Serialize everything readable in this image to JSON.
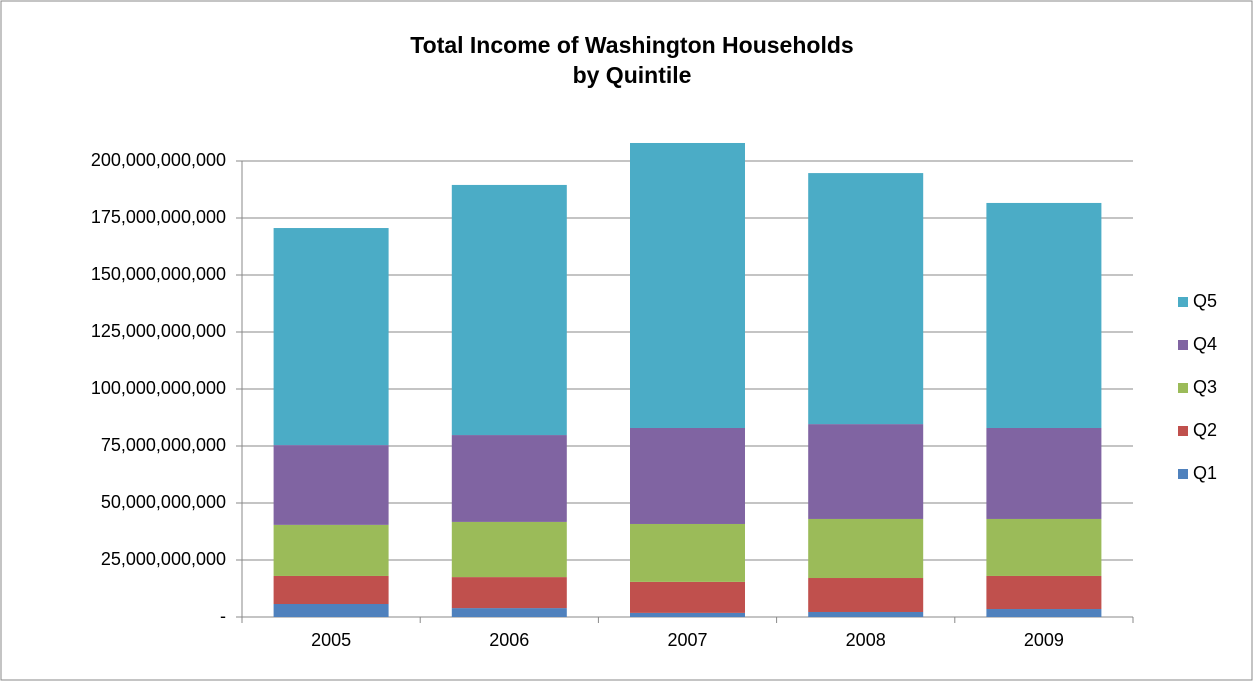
{
  "chart_data": {
    "type": "stacked_bar",
    "title": [
      "Total Income of Washington Households",
      "by Quintile"
    ],
    "categories": [
      "2005",
      "2006",
      "2007",
      "2008",
      "2009"
    ],
    "series": [
      {
        "name": "Q1",
        "color": "#4f81bd",
        "values": [
          5700000000,
          3900000000,
          1800000000,
          2200000000,
          3500000000
        ]
      },
      {
        "name": "Q2",
        "color": "#c0504d",
        "values": [
          12300000000,
          13600000000,
          13600000000,
          14900000000,
          14500000000
        ]
      },
      {
        "name": "Q3",
        "color": "#9bbb59",
        "values": [
          22400000000,
          24200000000,
          25400000000,
          25900000000,
          25000000000
        ]
      },
      {
        "name": "Q4",
        "color": "#8064a2",
        "values": [
          35000000000,
          38100000000,
          42100000000,
          41600000000,
          39900000000
        ]
      },
      {
        "name": "Q5",
        "color": "#4bacc6",
        "values": [
          95200000000,
          109700000000,
          125000000000,
          110100000000,
          98700000000
        ]
      }
    ],
    "ylim": [
      0,
      200000000000
    ],
    "yticks": [
      {
        "value": 0,
        "label": "-"
      },
      {
        "value": 25000000000,
        "label": "25,000,000,000"
      },
      {
        "value": 50000000000,
        "label": "50,000,000,000"
      },
      {
        "value": 75000000000,
        "label": "75,000,000,000"
      },
      {
        "value": 100000000000,
        "label": "100,000,000,000"
      },
      {
        "value": 125000000000,
        "label": "125,000,000,000"
      },
      {
        "value": 150000000000,
        "label": "150,000,000,000"
      },
      {
        "value": 175000000000,
        "label": "175,000,000,000"
      },
      {
        "value": 200000000000,
        "label": "200,000,000,000"
      }
    ],
    "grid": true,
    "legend": "right"
  }
}
